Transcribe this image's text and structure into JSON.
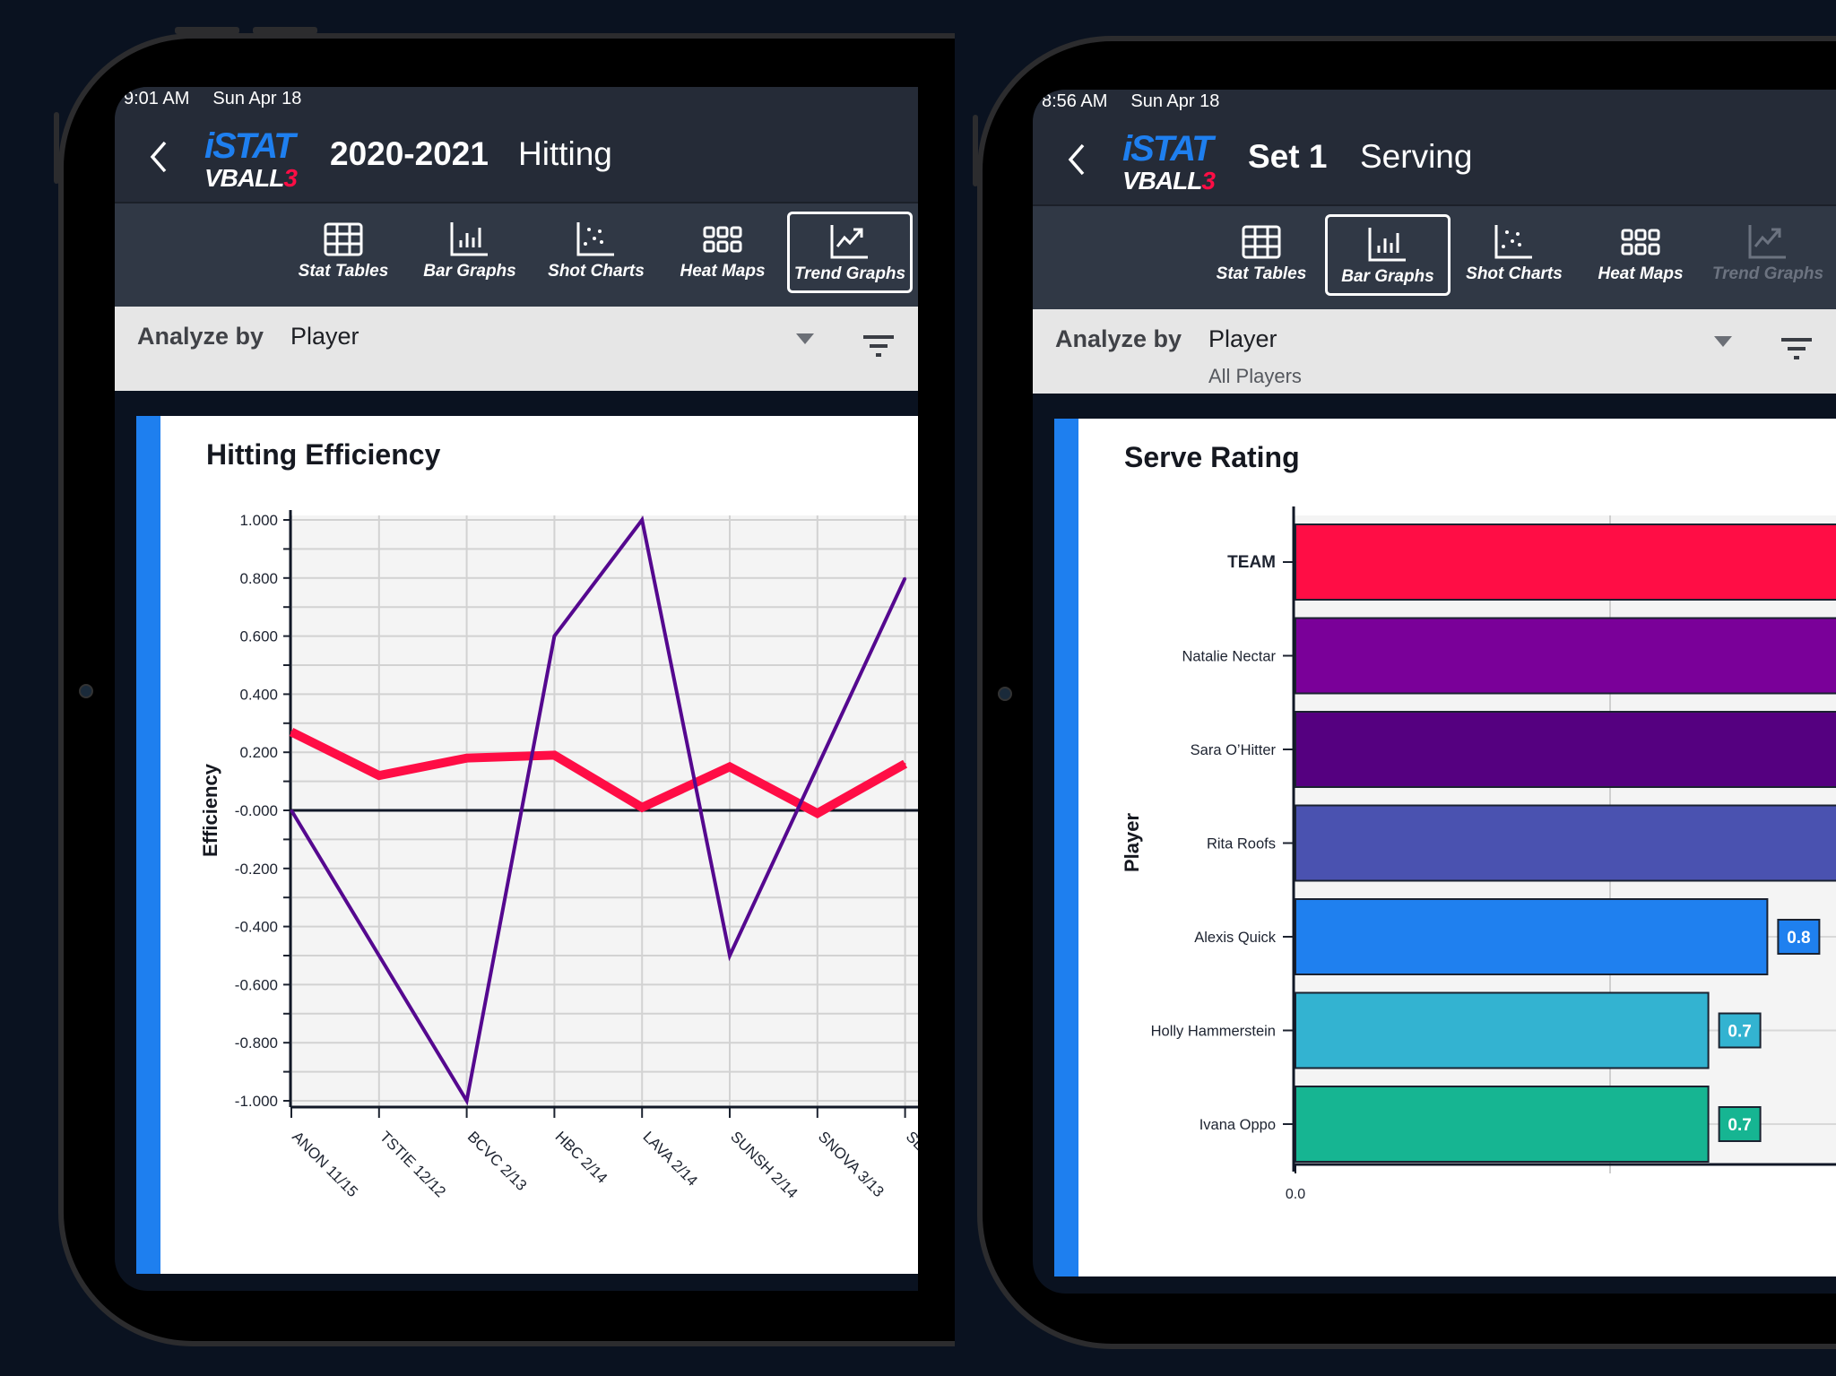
{
  "panels": [
    {
      "status": {
        "time": "9:01 AM",
        "date": "Sun Apr 18"
      },
      "logo": {
        "line1": "iSTAT",
        "line2": "VBALL",
        "line2_accent": "3"
      },
      "header": {
        "title": "2020-2021",
        "subtitle": "Hitting"
      },
      "toolbar": [
        {
          "label": "Stat Tables",
          "icon": "table-icon",
          "state": "normal"
        },
        {
          "label": "Bar Graphs",
          "icon": "bar-graph-icon",
          "state": "normal"
        },
        {
          "label": "Shot Charts",
          "icon": "shot-chart-icon",
          "state": "normal"
        },
        {
          "label": "Heat Maps",
          "icon": "heat-map-icon",
          "state": "normal"
        },
        {
          "label": "Trend Graphs",
          "icon": "trend-graph-icon",
          "state": "selected"
        }
      ],
      "analyze": {
        "label": "Analyze by",
        "value": "Player",
        "sub": ""
      },
      "card": {
        "title": "Hitting Efficiency"
      }
    },
    {
      "status": {
        "time": "8:56 AM",
        "date": "Sun Apr 18"
      },
      "logo": {
        "line1": "iSTAT",
        "line2": "VBALL",
        "line2_accent": "3"
      },
      "header": {
        "title": "Set 1",
        "subtitle": "Serving"
      },
      "toolbar": [
        {
          "label": "Stat Tables",
          "icon": "table-icon",
          "state": "normal"
        },
        {
          "label": "Bar Graphs",
          "icon": "bar-graph-icon",
          "state": "selected"
        },
        {
          "label": "Shot Charts",
          "icon": "shot-chart-icon",
          "state": "normal"
        },
        {
          "label": "Heat Maps",
          "icon": "heat-map-icon",
          "state": "normal"
        },
        {
          "label": "Trend Graphs",
          "icon": "trend-graph-icon",
          "state": "disabled"
        }
      ],
      "analyze": {
        "label": "Analyze by",
        "value": "Player",
        "sub": "All Players"
      },
      "card": {
        "title": "Serve Rating"
      }
    }
  ],
  "chart_data": [
    {
      "type": "line",
      "title": "Hitting Efficiency",
      "ylabel": "Efficiency",
      "xlabel": "",
      "ylim": [
        -1.0,
        1.0
      ],
      "grid": true,
      "yticks": [
        "1.000",
        "0.800",
        "0.600",
        "0.400",
        "0.200",
        "-0.000",
        "-0.200",
        "-0.400",
        "-0.600",
        "-0.800",
        "-1.000"
      ],
      "categories": [
        "ANON 11/15",
        "TSTIE 12/12",
        "BCVC 2/13",
        "HBC 2/14",
        "LAVA 2/14",
        "SUNSH 2/14",
        "SNOVA 3/13",
        "SE"
      ],
      "series": [
        {
          "color": "#ff0d45",
          "values": [
            0.27,
            0.12,
            0.18,
            0.19,
            0.01,
            0.15,
            -0.01,
            0.16
          ]
        },
        {
          "color": "#55088f",
          "values": [
            0.0,
            -0.5,
            -1.0,
            0.6,
            1.0,
            -0.5,
            0.15,
            0.8
          ]
        }
      ]
    },
    {
      "type": "bar",
      "orientation": "horizontal",
      "title": "Serve Rating",
      "ylabel": "Player",
      "xlabel": "",
      "xticks": [
        "0.0"
      ],
      "grid": true,
      "categories": [
        "TEAM",
        "Natalie Nectar",
        "Sara O’Hitter",
        "Rita Roofs",
        "Alexis Quick",
        "Holly Hammerstein",
        "Ivana Oppo"
      ],
      "values": [
        null,
        null,
        null,
        null,
        0.8,
        0.7,
        0.7
      ],
      "value_labels": [
        "",
        "",
        "",
        "",
        "0.8",
        "0.7",
        "0.7"
      ],
      "colors": [
        "#ff0d45",
        "#7a0099",
        "#550080",
        "#4a52b0",
        "#1f80ef",
        "#33b3d1",
        "#16b592"
      ]
    }
  ]
}
